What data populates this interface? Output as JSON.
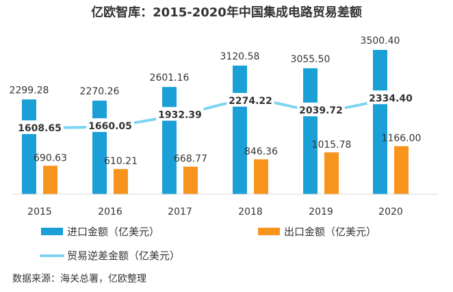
{
  "chart_data": {
    "type": "bar",
    "title": "亿欧智库：2015-2020年中国集成电路贸易差额",
    "categories": [
      "2015",
      "2016",
      "2017",
      "2018",
      "2019",
      "2020"
    ],
    "series": [
      {
        "name": "进口金额（亿美元）",
        "kind": "bar",
        "color": "#1a9fd6",
        "values": [
          2299.28,
          2270.26,
          2601.16,
          3120.58,
          3055.5,
          3500.4
        ]
      },
      {
        "name": "出口金额（亿美元）",
        "kind": "bar",
        "color": "#f7941d",
        "values": [
          690.63,
          610.21,
          668.77,
          846.36,
          1015.78,
          1166.0
        ]
      },
      {
        "name": "贸易逆差金额（亿美元）",
        "kind": "line",
        "color": "#7fd3f2",
        "values": [
          1608.65,
          1660.05,
          1932.39,
          2274.22,
          2039.72,
          2334.4
        ]
      }
    ],
    "ylim": [
      0,
      3500.4
    ],
    "grid": false,
    "legend_position": "bottom",
    "source": "数据来源：海关总署，亿欧整理"
  }
}
